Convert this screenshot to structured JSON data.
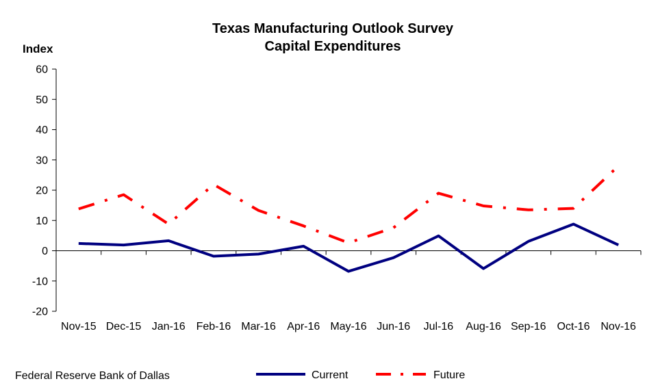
{
  "chart_data": {
    "type": "line",
    "title": [
      "Texas Manufacturing Outlook Survey",
      "Capital Expenditures"
    ],
    "ylabel": "Index",
    "xlabel": "",
    "ylim": [
      -20,
      60
    ],
    "yticks": [
      -20,
      -10,
      0,
      10,
      20,
      30,
      40,
      50,
      60
    ],
    "categories": [
      "Nov-15",
      "Dec-15",
      "Jan-16",
      "Feb-16",
      "Mar-16",
      "Apr-16",
      "May-16",
      "Jun-16",
      "Jul-16",
      "Aug-16",
      "Sep-16",
      "Oct-16",
      "Nov-16"
    ],
    "series": [
      {
        "name": "Current",
        "color": "#000080",
        "style": "solid",
        "values": [
          2.4,
          1.9,
          3.3,
          -1.8,
          -1.1,
          1.5,
          -6.8,
          -2.3,
          4.9,
          -5.9,
          3.1,
          8.8,
          1.9
        ]
      },
      {
        "name": "Future",
        "color": "#ff0000",
        "style": "dash-dot",
        "values": [
          13.8,
          18.5,
          8.8,
          21.9,
          13.3,
          8.2,
          2.6,
          7.6,
          19.0,
          14.8,
          13.5,
          14.0,
          28.0
        ]
      }
    ],
    "grid": false,
    "legend": "bottom"
  },
  "source": "Federal Reserve Bank of Dallas"
}
